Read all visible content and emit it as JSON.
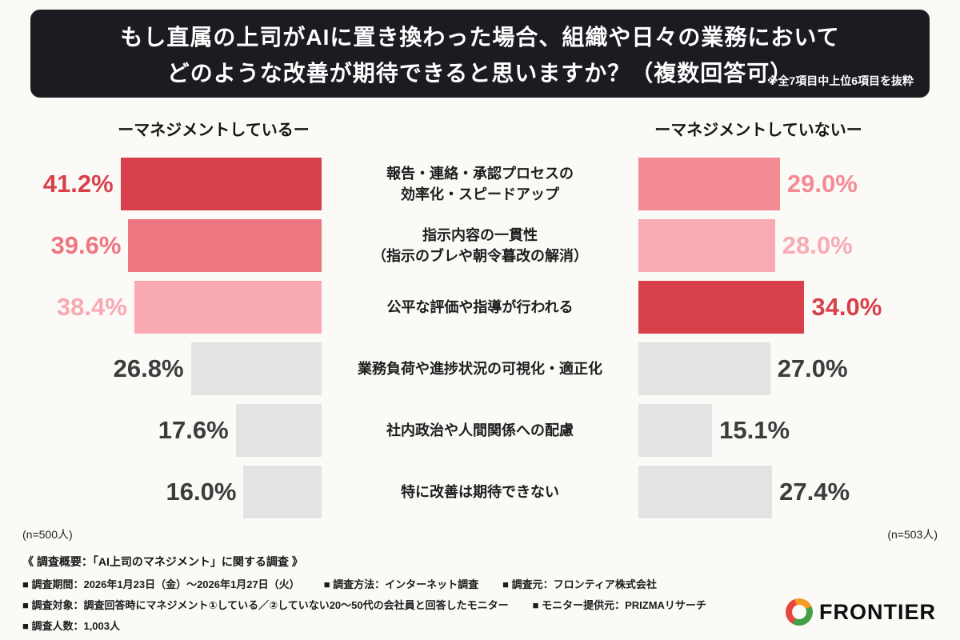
{
  "header": {
    "title_lines": [
      "もし直属の上司がAIに置き換わった場合、組織や日々の業務において",
      "どのような改善が期待できると思いますか？（複数回答可）"
    ],
    "note": "※全7項目中上位6項目を抜粋",
    "bg_color": "#1b1b22"
  },
  "groups": {
    "left": {
      "label": "ーマネジメントしているー",
      "n_label": "(n=500人)"
    },
    "right": {
      "label": "ーマネジメントしていないー",
      "n_label": "(n=503人)"
    }
  },
  "chart_data": {
    "type": "bar",
    "layout": "butterfly",
    "categories": [
      "報告・連絡・承認プロセスの効率化・スピードアップ",
      "指示内容の一貫性（指示のブレや朝令暮改の解消）",
      "公平な評価や指導が行われる",
      "業務負荷や進捗状況の可視化・適正化",
      "社内政治や人間関係への配慮",
      "特に改善は期待できない"
    ],
    "series": [
      {
        "name": "マネジメントしている",
        "values": [
          41.2,
          39.6,
          38.4,
          26.8,
          17.6,
          16.0
        ]
      },
      {
        "name": "マネジメントしていない",
        "values": [
          29.0,
          28.0,
          34.0,
          27.0,
          15.1,
          27.4
        ]
      }
    ],
    "xlim": [
      0,
      45
    ],
    "rows": [
      {
        "label": "報告・連絡・承認プロセスの\n効率化・スピードアップ",
        "left": {
          "value": 41.2,
          "display": "41.2%",
          "color": "#d8414b",
          "text_color": "#d8414b"
        },
        "right": {
          "value": 29.0,
          "display": "29.0%",
          "color": "#f48a93",
          "text_color": "#f48a93"
        }
      },
      {
        "label": "指示内容の一貫性\n（指示のブレや朝令暮改の解消）",
        "left": {
          "value": 39.6,
          "display": "39.6%",
          "color": "#ee7681",
          "text_color": "#ee7681"
        },
        "right": {
          "value": 28.0,
          "display": "28.0%",
          "color": "#f8abb3",
          "text_color": "#f8abb3"
        }
      },
      {
        "label": "公平な評価や指導が行われる",
        "left": {
          "value": 38.4,
          "display": "38.4%",
          "color": "#f9a9b1",
          "text_color": "#f9a9b1"
        },
        "right": {
          "value": 34.0,
          "display": "34.0%",
          "color": "#d8414b",
          "text_color": "#d8414b"
        }
      },
      {
        "label": "業務負荷や進捗状況の可視化・適正化",
        "left": {
          "value": 26.8,
          "display": "26.8%",
          "color": "#e4e3e3",
          "text_color": "#3c3c3c"
        },
        "right": {
          "value": 27.0,
          "display": "27.0%",
          "color": "#e4e3e3",
          "text_color": "#3c3c3c"
        }
      },
      {
        "label": "社内政治や人間関係への配慮",
        "left": {
          "value": 17.6,
          "display": "17.6%",
          "color": "#e4e3e3",
          "text_color": "#3c3c3c"
        },
        "right": {
          "value": 15.1,
          "display": "15.1%",
          "color": "#e4e3e3",
          "text_color": "#3c3c3c"
        }
      },
      {
        "label": "特に改善は期待できない",
        "left": {
          "value": 16.0,
          "display": "16.0%",
          "color": "#e4e3e3",
          "text_color": "#3c3c3c"
        },
        "right": {
          "value": 27.4,
          "display": "27.4%",
          "color": "#e4e3e3",
          "text_color": "#3c3c3c"
        }
      }
    ]
  },
  "footer": {
    "heading": "《 調査概要：「AI上司のマネジメント」に関する調査 》",
    "row1": [
      "■ 調査期間：2026年1月23日（金）〜2026年1月27日（火）",
      "■ 調査方法：インターネット調査",
      "■ 調査元：フロンティア株式会社"
    ],
    "row2": [
      "■ 調査対象：調査回答時にマネジメント①している／②していない20〜50代の会社員と回答したモニター",
      "■ モニター提供元：PRIZMAリサーチ"
    ],
    "row3": [
      "■ 調査人数：1,003人"
    ],
    "brand": "FRONTIER"
  }
}
